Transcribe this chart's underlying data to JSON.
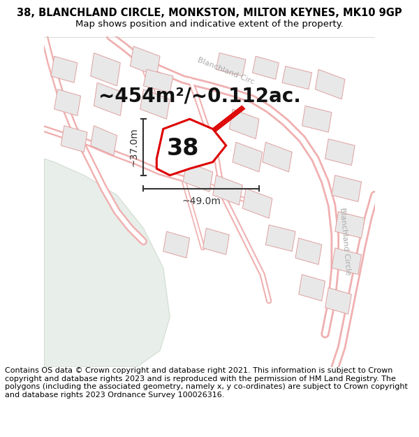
{
  "title_line1": "38, BLANCHLAND CIRCLE, MONKSTON, MILTON KEYNES, MK10 9GP",
  "title_line2": "Map shows position and indicative extent of the property.",
  "area_text": "~454m²/~0.112ac.",
  "label_38": "38",
  "dim_vertical": "~37.0m",
  "dim_horizontal": "~49.0m",
  "street_label_top": "Blanchland Circ",
  "street_label_right": "Blanchland Circle",
  "footnote": "Contains OS data © Crown copyright and database right 2021. This information is subject to Crown copyright and database rights 2023 and is reproduced with the permission of HM Land Registry. The polygons (including the associated geometry, namely x, y co-ordinates) are subject to Crown copyright and database rights 2023 Ordnance Survey 100026316.",
  "bg_map_color": "#f7f7f7",
  "road_outer": "#f0aaaa",
  "road_inner": "#ffffff",
  "building_fill": "#e8e8e8",
  "building_stroke": "#e0a0a0",
  "green_fill": "#e8eeea",
  "green_stroke": "#d0ddd0",
  "plot_stroke": "#dd0000",
  "plot_fill": "#ffffff",
  "dim_color": "#333333",
  "street_label_color": "#aaaaaa",
  "title_fontsize": 10.5,
  "subtitle_fontsize": 9.5,
  "area_fontsize": 20,
  "label_fontsize": 24,
  "dim_fontsize": 10,
  "footnote_fontsize": 8.0,
  "street_fontsize": 8
}
